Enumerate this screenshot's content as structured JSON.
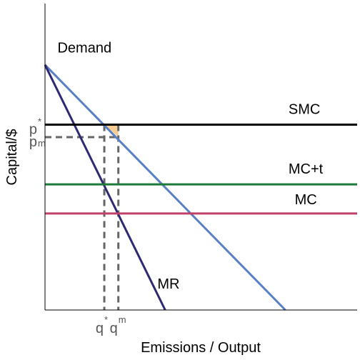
{
  "chart_data": {
    "type": "line",
    "xlabel": "Emissions / Output",
    "ylabel": "Capital/$",
    "xlim": [
      0,
      100
    ],
    "ylim": [
      0,
      100
    ],
    "grid": false,
    "series": [
      {
        "name": "Demand",
        "color": "#5a80c4",
        "x": [
          0,
          77
        ],
        "y": [
          80,
          0
        ]
      },
      {
        "name": "MR",
        "color": "#2e2a72",
        "x": [
          0,
          38.5
        ],
        "y": [
          80,
          0
        ]
      },
      {
        "name": "SMC",
        "color": "#000000",
        "x": [
          0,
          100
        ],
        "y": [
          60.5,
          60.5
        ]
      },
      {
        "name": "MC+t",
        "color": "#1e7a3a",
        "x": [
          0,
          100
        ],
        "y": [
          41,
          41
        ]
      },
      {
        "name": "MC",
        "color": "#c0406a",
        "x": [
          0,
          100
        ],
        "y": [
          31.5,
          31.5
        ]
      }
    ],
    "annotations": [
      {
        "text": "SMC",
        "x": 78,
        "y": 64
      },
      {
        "text": "MC+t",
        "x": 78,
        "y": 44.5
      },
      {
        "text": "MC",
        "x": 80,
        "y": 34.5
      },
      {
        "text": "MR",
        "x": 36,
        "y": 7
      },
      {
        "text": "Demand",
        "x": 4,
        "y": 84
      }
    ],
    "welfare_triangle": {
      "color": "#f5c98a",
      "points": [
        [
          19,
          60.5
        ],
        [
          23.5,
          60.5
        ],
        [
          23.5,
          56.4
        ]
      ]
    },
    "guides": {
      "color": "#666666",
      "q_star": 19,
      "q_m": 23.5,
      "p_star": 60.5,
      "p_m": 56.4
    },
    "ticks": {
      "y": [
        {
          "base": "p",
          "sup": "*",
          "value": 60.5
        },
        {
          "base": "p",
          "sup": "m",
          "value": 56.4
        }
      ],
      "x": [
        {
          "base": "q",
          "sup": "*",
          "value": 19
        },
        {
          "base": "q",
          "sup": "m",
          "value": 23.5
        }
      ]
    }
  }
}
